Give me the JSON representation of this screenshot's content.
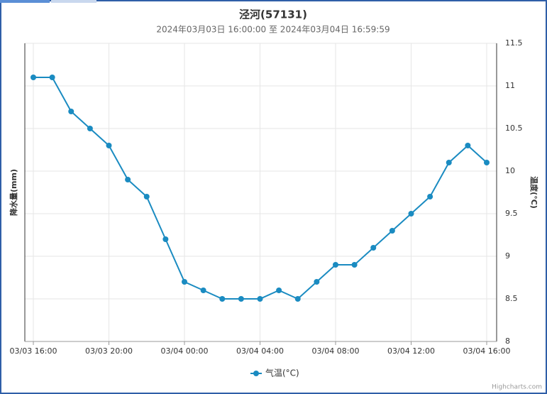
{
  "chart_data": {
    "type": "line",
    "title": "泾河(57131)",
    "subtitle": "2024年03月03日 16:00:00 至 2024年03月04日 16:59:59",
    "y_axis_label": "降水量(mm)",
    "y2_axis_label": "温度(°C)",
    "credits": "Highcharts.com",
    "categories": [
      "03/03 16:00",
      null,
      null,
      null,
      "03/03 20:00",
      null,
      null,
      null,
      "03/04 00:00",
      null,
      null,
      null,
      "03/04 04:00",
      null,
      null,
      null,
      "03/04 08:00",
      null,
      null,
      null,
      "03/04 12:00",
      null,
      null,
      null,
      "03/04 16:00"
    ],
    "series": [
      {
        "name": "气温(°C)",
        "color": "#1a8bc1",
        "axis": "y2",
        "values": [
          11.1,
          11.1,
          10.7,
          10.5,
          10.3,
          9.9,
          9.7,
          9.2,
          8.7,
          8.6,
          8.5,
          8.5,
          8.5,
          8.6,
          8.5,
          8.7,
          8.9,
          8.9,
          9.1,
          9.3,
          9.5,
          9.7,
          10.1,
          10.3,
          10.1
        ]
      }
    ],
    "y2lim": [
      8,
      11.5
    ],
    "y2ticks": [
      8,
      8.5,
      9,
      9.5,
      10,
      10.5,
      11,
      11.5
    ],
    "grid": true,
    "legend": "bottom"
  }
}
